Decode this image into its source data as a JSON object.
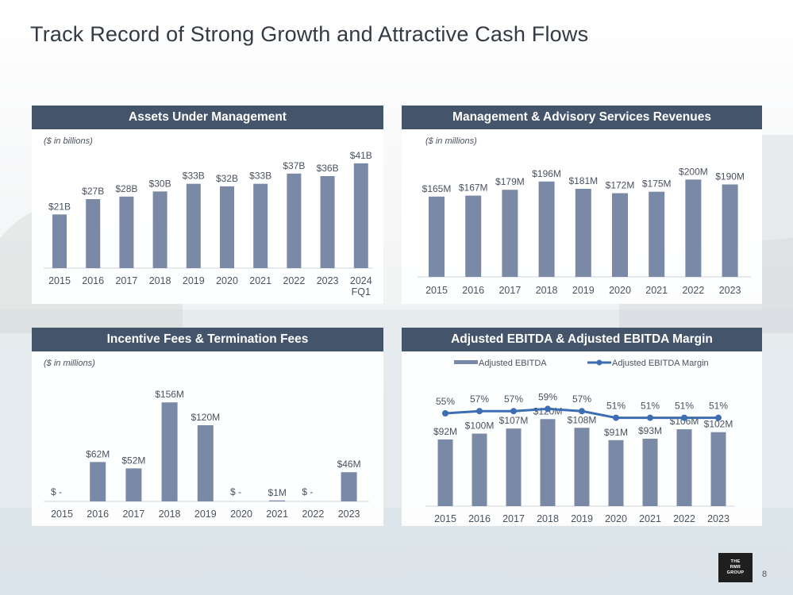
{
  "page": {
    "title": "Track Record of Strong Growth and Attractive Cash Flows",
    "page_number": "8",
    "logo_lines": [
      "THE",
      "RMR",
      "GROUP"
    ]
  },
  "colors": {
    "bar": "#7a89a5",
    "line": "#3d6eb3",
    "header": "#44546a"
  },
  "chart_data": [
    {
      "id": "aum",
      "type": "bar",
      "title": "Assets Under Management",
      "units_note": "($ in billions)",
      "categories": [
        "2015",
        "2016",
        "2017",
        "2018",
        "2019",
        "2020",
        "2021",
        "2022",
        "2023",
        "2024"
      ],
      "category_sublabels": [
        "",
        "",
        "",
        "",
        "",
        "",
        "",
        "",
        "",
        "FQ1"
      ],
      "values": [
        21,
        27,
        28,
        30,
        33,
        32,
        33,
        37,
        36,
        41
      ],
      "labels": [
        "$21B",
        "$27B",
        "$28B",
        "$30B",
        "$33B",
        "$32B",
        "$33B",
        "$37B",
        "$36B",
        "$41B"
      ],
      "ylim": [
        0,
        45
      ]
    },
    {
      "id": "mgmt",
      "type": "bar",
      "title": "Management & Advisory Services Revenues",
      "units_note": "($ in millions)",
      "categories": [
        "2015",
        "2016",
        "2017",
        "2018",
        "2019",
        "2020",
        "2021",
        "2022",
        "2023"
      ],
      "values": [
        165,
        167,
        179,
        196,
        181,
        172,
        175,
        200,
        190
      ],
      "labels": [
        "$165M",
        "$167M",
        "$179M",
        "$196M",
        "$181M",
        "$172M",
        "$175M",
        "$200M",
        "$190M"
      ],
      "ylim": [
        0,
        225
      ]
    },
    {
      "id": "fees",
      "type": "bar",
      "title": "Incentive Fees & Termination Fees",
      "units_note": "($ in millions)",
      "categories": [
        "2015",
        "2016",
        "2017",
        "2018",
        "2019",
        "2020",
        "2021",
        "2022",
        "2023"
      ],
      "values": [
        0,
        62,
        52,
        156,
        120,
        0,
        1,
        0,
        46
      ],
      "labels": [
        "$ -",
        "$62M",
        "$52M",
        "$156M",
        "$120M",
        "$ -",
        "$1M",
        "$ -",
        "$46M"
      ],
      "ylim": [
        0,
        175
      ]
    },
    {
      "id": "ebitda",
      "type": "bar",
      "title": "Adjusted EBITDA & Adjusted EBITDA Margin",
      "categories": [
        "2015",
        "2016",
        "2017",
        "2018",
        "2019",
        "2020",
        "2021",
        "2022",
        "2023"
      ],
      "series": [
        {
          "name": "Adjusted EBITDA",
          "kind": "bar",
          "values": [
            92,
            100,
            107,
            120,
            108,
            91,
            93,
            106,
            102
          ],
          "labels": [
            "$92M",
            "$100M",
            "$107M",
            "$120M",
            "$108M",
            "$91M",
            "$93M",
            "$106M",
            "$102M"
          ]
        },
        {
          "name": "Adjusted EBITDA Margin",
          "kind": "line",
          "unit": "%",
          "values": [
            55,
            57,
            57,
            59,
            57,
            51,
            51,
            51,
            51
          ],
          "labels": [
            "55%",
            "57%",
            "57%",
            "59%",
            "57%",
            "51%",
            "51%",
            "51%",
            "51%"
          ]
        }
      ],
      "ylim": [
        0,
        140
      ],
      "margin_ylim": [
        0,
        70
      ],
      "legend": "top"
    }
  ]
}
